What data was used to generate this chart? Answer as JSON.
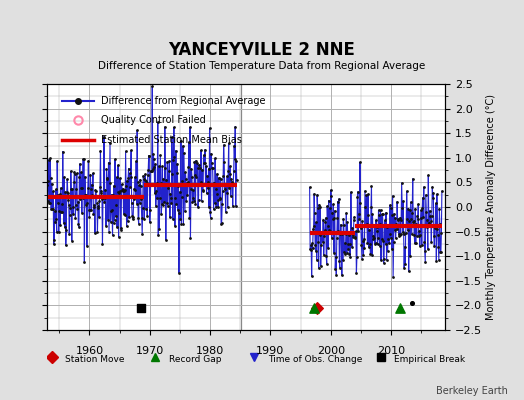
{
  "title": "YANCEYVILLE 2 NNE",
  "subtitle": "Difference of Station Temperature Data from Regional Average",
  "ylabel": "Monthly Temperature Anomaly Difference (°C)",
  "xlim": [
    1953,
    2019
  ],
  "ylim": [
    -2.5,
    2.5
  ],
  "yticks": [
    -2.5,
    -2,
    -1.5,
    -1,
    -0.5,
    0,
    0.5,
    1,
    1.5,
    2,
    2.5
  ],
  "xticks": [
    1960,
    1970,
    1980,
    1990,
    2000,
    2010
  ],
  "bias1": 0.2,
  "bias2": 0.45,
  "bias3": -0.52,
  "bias4": -0.38,
  "seg1a_start": 1953.0,
  "seg1a_end": 1969.0,
  "seg1b_start": 1969.0,
  "seg1b_end": 1984.5,
  "seg2_start": 1996.5,
  "seg2_end": 2004.0,
  "seg3_start": 2004.0,
  "seg3_end": 2018.5,
  "gap_line_x": 1985.2,
  "empirical_break_x": 1968.5,
  "empirical_break_y": -2.05,
  "station_move_x": 1997.7,
  "station_move_y": -2.05,
  "record_gap1_x": 1997.2,
  "record_gap1_y": -2.05,
  "record_gap2_x": 2011.5,
  "record_gap2_y": -2.05,
  "small_dot_x": 2013.5,
  "small_dot_y": -1.95,
  "bg_color": "#e0e0e0",
  "plot_bg_color": "#ffffff",
  "grid_color": "#b0b0b0",
  "line_color": "#2222cc",
  "bias_color": "#dd0000",
  "marker_color": "#111111",
  "station_move_color": "#cc0000",
  "record_gap_color": "#007700",
  "obs_change_color": "#2222cc",
  "watermark": "Berkeley Earth"
}
